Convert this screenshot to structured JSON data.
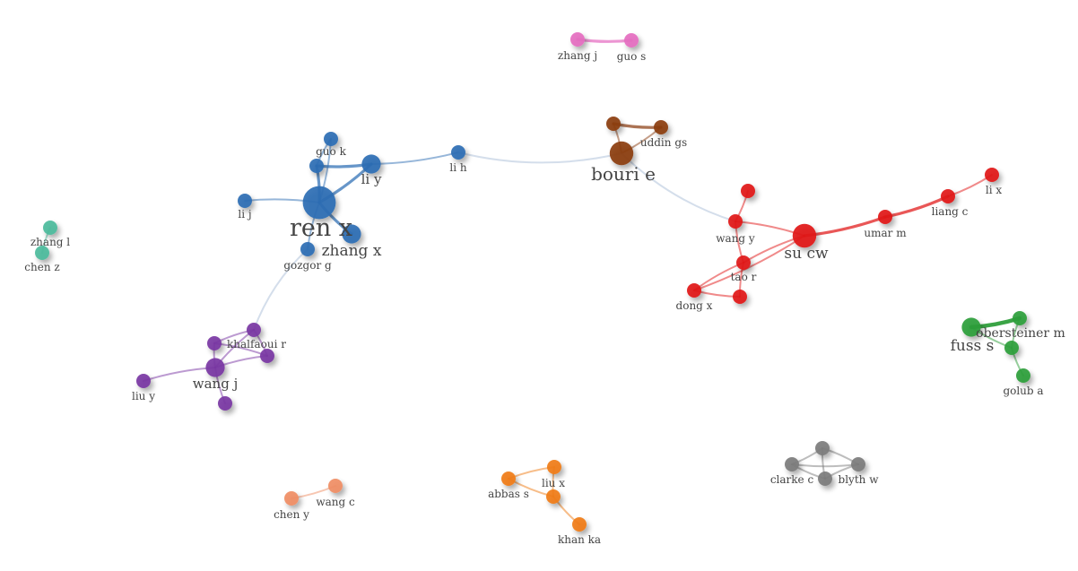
{
  "title": "",
  "colors": {
    "pink": "#e56cc0",
    "blue": "#2d6db4",
    "brown": "#8b3d12",
    "red": "#e11616",
    "teal": "#4dbb9c",
    "purple": "#7a36a3",
    "green": "#2e9e3a",
    "orange": "#f07c14",
    "salmon": "#f08d64",
    "gray": "#7c7c7c"
  },
  "nodes": [
    {
      "id": "zhang_j",
      "label": "zhang j",
      "cluster": "pink",
      "weight": 1
    },
    {
      "id": "guo_s",
      "label": "guo s",
      "cluster": "pink",
      "weight": 1
    },
    {
      "id": "ren_x",
      "label": "ren x",
      "cluster": "blue",
      "weight": 5
    },
    {
      "id": "guo_k",
      "label": "guo k",
      "cluster": "blue",
      "weight": 1
    },
    {
      "id": "li_y",
      "label": "li y",
      "cluster": "blue",
      "weight": 2
    },
    {
      "id": "li_h",
      "label": "li h",
      "cluster": "blue",
      "weight": 1
    },
    {
      "id": "li_j",
      "label": "li j",
      "cluster": "blue",
      "weight": 1
    },
    {
      "id": "zhang_x",
      "label": "zhang x",
      "cluster": "blue",
      "weight": 2
    },
    {
      "id": "gozgor_g",
      "label": "gozgor g",
      "cluster": "blue",
      "weight": 1
    },
    {
      "id": "blue_extra",
      "label": "",
      "cluster": "blue",
      "weight": 1
    },
    {
      "id": "bouri_e",
      "label": "bouri e",
      "cluster": "brown",
      "weight": 3
    },
    {
      "id": "uddin_gs",
      "label": "uddin gs",
      "cluster": "brown",
      "weight": 1
    },
    {
      "id": "brown_extra",
      "label": "",
      "cluster": "brown",
      "weight": 1
    },
    {
      "id": "su_cw",
      "label": "su cw",
      "cluster": "red",
      "weight": 3
    },
    {
      "id": "wang_y",
      "label": "wang y",
      "cluster": "red",
      "weight": 1
    },
    {
      "id": "tao_r",
      "label": "tao r",
      "cluster": "red",
      "weight": 1
    },
    {
      "id": "dong_x",
      "label": "dong x",
      "cluster": "red",
      "weight": 1
    },
    {
      "id": "umar_m",
      "label": "umar m",
      "cluster": "red",
      "weight": 1
    },
    {
      "id": "liang_c",
      "label": "liang c",
      "cluster": "red",
      "weight": 1
    },
    {
      "id": "li_x",
      "label": "li x",
      "cluster": "red",
      "weight": 1
    },
    {
      "id": "red_top",
      "label": "",
      "cluster": "red",
      "weight": 1
    },
    {
      "id": "red_low",
      "label": "",
      "cluster": "red",
      "weight": 1
    },
    {
      "id": "zhang_l",
      "label": "zhang l",
      "cluster": "teal",
      "weight": 1
    },
    {
      "id": "chen_z",
      "label": "chen z",
      "cluster": "teal",
      "weight": 1
    },
    {
      "id": "khalfaoui_r",
      "label": "khalfaoui r",
      "cluster": "purple",
      "weight": 1
    },
    {
      "id": "wang_j",
      "label": "wang j",
      "cluster": "purple",
      "weight": 2
    },
    {
      "id": "liu_y",
      "label": "liu y",
      "cluster": "purple",
      "weight": 1
    },
    {
      "id": "purple_a",
      "label": "",
      "cluster": "purple",
      "weight": 1
    },
    {
      "id": "purple_b",
      "label": "",
      "cluster": "purple",
      "weight": 1
    },
    {
      "id": "purple_c",
      "label": "",
      "cluster": "purple",
      "weight": 1
    },
    {
      "id": "fuss_s",
      "label": "fuss s",
      "cluster": "green",
      "weight": 2
    },
    {
      "id": "obersteiner_m",
      "label": "obersteiner m",
      "cluster": "green",
      "weight": 1
    },
    {
      "id": "golub_a",
      "label": "golub a",
      "cluster": "green",
      "weight": 1
    },
    {
      "id": "green_mid",
      "label": "",
      "cluster": "green",
      "weight": 1
    },
    {
      "id": "liu_x",
      "label": "liu x",
      "cluster": "orange",
      "weight": 1
    },
    {
      "id": "abbas_s",
      "label": "abbas s",
      "cluster": "orange",
      "weight": 1
    },
    {
      "id": "khan_ka",
      "label": "khan ka",
      "cluster": "orange",
      "weight": 1
    },
    {
      "id": "orange_mid",
      "label": "",
      "cluster": "orange",
      "weight": 1
    },
    {
      "id": "chen_y",
      "label": "chen y",
      "cluster": "salmon",
      "weight": 1
    },
    {
      "id": "wang_c",
      "label": "wang c",
      "cluster": "salmon",
      "weight": 1
    },
    {
      "id": "clarke_c",
      "label": "clarke c",
      "cluster": "gray",
      "weight": 1
    },
    {
      "id": "blyth_w",
      "label": "blyth w",
      "cluster": "gray",
      "weight": 1
    },
    {
      "id": "gray_top",
      "label": "",
      "cluster": "gray",
      "weight": 1
    },
    {
      "id": "gray_bottom",
      "label": "",
      "cluster": "gray",
      "weight": 1
    }
  ],
  "edges": [
    {
      "source": "zhang_j",
      "target": "guo_s",
      "strength": 2
    },
    {
      "source": "ren_x",
      "target": "li_y",
      "strength": 2
    },
    {
      "source": "ren_x",
      "target": "guo_k",
      "strength": 1
    },
    {
      "source": "ren_x",
      "target": "blue_extra",
      "strength": 2
    },
    {
      "source": "ren_x",
      "target": "li_j",
      "strength": 1
    },
    {
      "source": "ren_x",
      "target": "zhang_x",
      "strength": 2
    },
    {
      "source": "ren_x",
      "target": "gozgor_g",
      "strength": 1
    },
    {
      "source": "blue_extra",
      "target": "li_y",
      "strength": 2
    },
    {
      "source": "guo_k",
      "target": "blue_extra",
      "strength": 1
    },
    {
      "source": "li_y",
      "target": "li_h",
      "strength": 1
    },
    {
      "source": "li_h",
      "target": "bouri_e",
      "strength": 1
    },
    {
      "source": "bouri_e",
      "target": "uddin_gs",
      "strength": 1
    },
    {
      "source": "bouri_e",
      "target": "brown_extra",
      "strength": 1
    },
    {
      "source": "brown_extra",
      "target": "uddin_gs",
      "strength": 2
    },
    {
      "source": "bouri_e",
      "target": "wang_y",
      "strength": 1
    },
    {
      "source": "su_cw",
      "target": "wang_y",
      "strength": 1
    },
    {
      "source": "su_cw",
      "target": "tao_r",
      "strength": 1
    },
    {
      "source": "su_cw",
      "target": "umar_m",
      "strength": 2
    },
    {
      "source": "umar_m",
      "target": "liang_c",
      "strength": 2
    },
    {
      "source": "liang_c",
      "target": "li_x",
      "strength": 1
    },
    {
      "source": "wang_y",
      "target": "red_top",
      "strength": 1
    },
    {
      "source": "wang_y",
      "target": "tao_r",
      "strength": 1
    },
    {
      "source": "tao_r",
      "target": "dong_x",
      "strength": 1
    },
    {
      "source": "tao_r",
      "target": "red_low",
      "strength": 1
    },
    {
      "source": "dong_x",
      "target": "red_low",
      "strength": 1
    },
    {
      "source": "dong_x",
      "target": "su_cw",
      "strength": 1
    },
    {
      "source": "zhang_l",
      "target": "chen_z",
      "strength": 1
    },
    {
      "source": "gozgor_g",
      "target": "purple_a",
      "strength": 1
    },
    {
      "source": "khalfaoui_r",
      "target": "purple_a",
      "strength": 1
    },
    {
      "source": "khalfaoui_r",
      "target": "purple_b",
      "strength": 1
    },
    {
      "source": "khalfaoui_r",
      "target": "wang_j",
      "strength": 1
    },
    {
      "source": "purple_a",
      "target": "purple_b",
      "strength": 1
    },
    {
      "source": "purple_a",
      "target": "wang_j",
      "strength": 1
    },
    {
      "source": "purple_b",
      "target": "wang_j",
      "strength": 1
    },
    {
      "source": "wang_j",
      "target": "liu_y",
      "strength": 1
    },
    {
      "source": "wang_j",
      "target": "purple_c",
      "strength": 1
    },
    {
      "source": "fuss_s",
      "target": "obersteiner_m",
      "strength": 3
    },
    {
      "source": "fuss_s",
      "target": "green_mid",
      "strength": 1
    },
    {
      "source": "obersteiner_m",
      "target": "green_mid",
      "strength": 1
    },
    {
      "source": "green_mid",
      "target": "golub_a",
      "strength": 1
    },
    {
      "source": "liu_x",
      "target": "abbas_s",
      "strength": 1
    },
    {
      "source": "liu_x",
      "target": "orange_mid",
      "strength": 1
    },
    {
      "source": "abbas_s",
      "target": "orange_mid",
      "strength": 1
    },
    {
      "source": "orange_mid",
      "target": "khan_ka",
      "strength": 1
    },
    {
      "source": "chen_y",
      "target": "wang_c",
      "strength": 1
    },
    {
      "source": "clarke_c",
      "target": "gray_top",
      "strength": 1
    },
    {
      "source": "clarke_c",
      "target": "gray_bottom",
      "strength": 1
    },
    {
      "source": "clarke_c",
      "target": "blyth_w",
      "strength": 1
    },
    {
      "source": "blyth_w",
      "target": "gray_top",
      "strength": 1
    },
    {
      "source": "blyth_w",
      "target": "gray_bottom",
      "strength": 1
    },
    {
      "source": "gray_top",
      "target": "gray_bottom",
      "strength": 1
    }
  ]
}
